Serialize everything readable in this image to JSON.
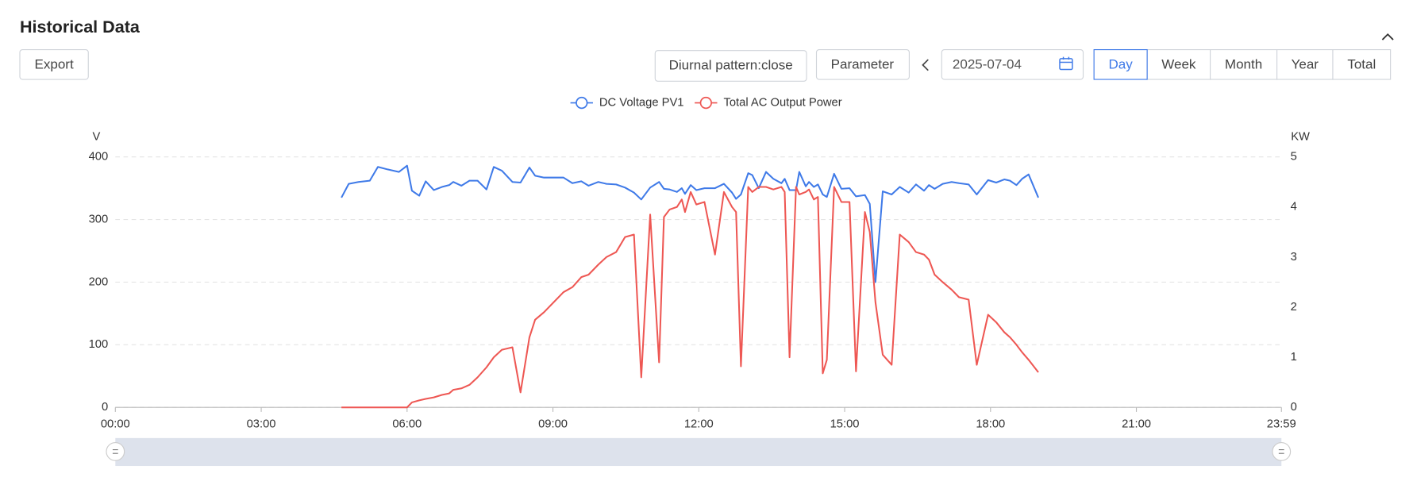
{
  "header": {
    "title": "Historical Data"
  },
  "toolbar": {
    "export": "Export",
    "diurnal": "Diurnal pattern:close",
    "parameter": "Parameter",
    "date": "2025-07-04",
    "tabs": [
      "Day",
      "Week",
      "Month",
      "Year",
      "Total"
    ],
    "active_tab": 0
  },
  "chart_data": {
    "type": "line",
    "ylabel": "V",
    "y2label": "KW",
    "x": [
      "04:39",
      "04:48",
      "05:00",
      "05:14",
      "05:24",
      "05:36",
      "05:50",
      "06:00",
      "06:06",
      "06:15",
      "06:23",
      "06:33",
      "06:43",
      "06:52",
      "06:57",
      "07:07",
      "07:17",
      "07:27",
      "07:38",
      "07:47",
      "07:57",
      "08:10",
      "08:20",
      "08:31",
      "08:38",
      "08:49",
      "09:13",
      "09:24",
      "09:35",
      "09:44",
      "09:56",
      "10:06",
      "10:18",
      "10:29",
      "10:40",
      "10:49",
      "11:00",
      "11:11",
      "11:17",
      "11:24",
      "11:33",
      "11:39",
      "11:43",
      "11:50",
      "11:57",
      "12:07",
      "12:20",
      "12:31",
      "12:41",
      "12:46",
      "12:52",
      "13:01",
      "13:06",
      "13:14",
      "13:23",
      "13:32",
      "13:42",
      "13:46",
      "13:52",
      "14:00",
      "14:04",
      "14:12",
      "14:16",
      "14:22",
      "14:27",
      "14:33",
      "14:38",
      "14:47",
      "14:56",
      "15:06",
      "15:14",
      "15:25",
      "15:31",
      "15:38",
      "15:47",
      "15:58",
      "16:08",
      "16:19",
      "16:28",
      "16:38",
      "16:44",
      "16:51",
      "17:01",
      "17:12",
      "17:21",
      "17:33",
      "17:43",
      "17:57",
      "18:07",
      "18:17",
      "18:24",
      "18:32",
      "18:39",
      "18:47",
      "18:59"
    ],
    "series": [
      {
        "name": "DC Voltage PV1",
        "color": "#3f7ae8",
        "values": [
          335,
          357,
          360,
          362,
          384,
          380,
          376,
          386,
          346,
          338,
          361,
          347,
          352,
          355,
          360,
          354,
          362,
          362,
          348,
          384,
          378,
          360,
          359,
          383,
          370,
          367,
          367,
          358,
          361,
          354,
          360,
          357,
          356,
          351,
          343,
          332,
          351,
          360,
          349,
          348,
          344,
          350,
          341,
          355,
          347,
          350,
          350,
          357,
          343,
          333,
          340,
          374,
          371,
          350,
          376,
          365,
          358,
          365,
          347,
          347,
          376,
          353,
          360,
          352,
          356,
          340,
          336,
          373,
          349,
          350,
          337,
          339,
          325,
          200,
          345,
          340,
          352,
          343,
          356,
          346,
          355,
          349,
          357,
          360,
          358,
          356,
          340,
          363,
          359,
          364,
          362,
          355,
          365,
          372,
          335
        ]
      },
      {
        "name": "Total AC Output Power",
        "color": "#ee5753",
        "axis": "y2",
        "values": [
          0,
          0,
          0,
          0,
          0,
          0,
          0,
          0,
          0.1,
          0.14,
          0.17,
          0.2,
          0.25,
          0.28,
          0.35,
          0.38,
          0.45,
          0.6,
          0.8,
          1.0,
          1.15,
          1.2,
          0.3,
          1.4,
          1.75,
          1.9,
          2.3,
          2.4,
          2.6,
          2.65,
          2.85,
          3.0,
          3.1,
          3.4,
          3.45,
          0.6,
          3.85,
          0.9,
          3.8,
          3.95,
          4.0,
          4.15,
          3.9,
          4.3,
          4.05,
          4.1,
          3.05,
          4.3,
          4.0,
          3.9,
          0.82,
          4.4,
          4.3,
          4.4,
          4.4,
          4.35,
          4.4,
          4.3,
          1.0,
          4.4,
          4.25,
          4.3,
          4.35,
          4.15,
          4.2,
          0.68,
          0.95,
          4.4,
          4.1,
          4.1,
          0.72,
          3.9,
          3.5,
          2.1,
          1.05,
          0.85,
          3.45,
          3.3,
          3.1,
          3.05,
          2.95,
          2.65,
          2.5,
          2.35,
          2.2,
          2.15,
          0.85,
          1.85,
          1.7,
          1.5,
          1.4,
          1.25,
          1.1,
          0.95,
          0.7
        ]
      }
    ],
    "xlim": [
      "00:00",
      "23:59"
    ],
    "xticks": [
      "00:00",
      "03:00",
      "06:00",
      "09:00",
      "12:00",
      "15:00",
      "18:00",
      "21:00",
      "23:59"
    ],
    "ylim": [
      0,
      400
    ],
    "yticks": [
      0,
      100,
      200,
      300,
      400
    ],
    "y2lim": [
      0,
      5
    ],
    "y2ticks": [
      0,
      1,
      2,
      3,
      4,
      5
    ],
    "grid": true
  }
}
